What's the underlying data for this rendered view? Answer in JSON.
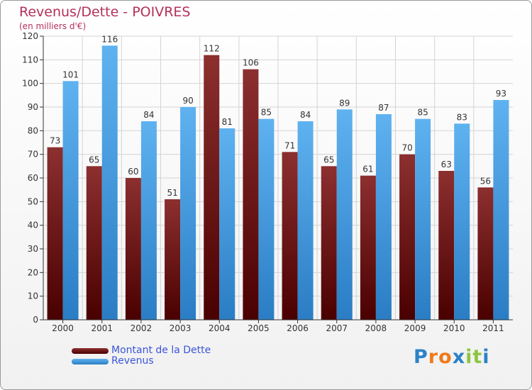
{
  "chart_data": {
    "type": "bar",
    "title": "Revenus/Dette - POIVRES",
    "subtitle": "(en milliers d'€)",
    "categories": [
      "2000",
      "2001",
      "2002",
      "2003",
      "2004",
      "2005",
      "2006",
      "2007",
      "2008",
      "2009",
      "2010",
      "2011"
    ],
    "series": [
      {
        "name": "Montant de la Dette",
        "values": [
          73,
          65,
          60,
          51,
          112,
          106,
          71,
          65,
          61,
          70,
          63,
          56
        ],
        "color": "#7a1e1e"
      },
      {
        "name": "Revenus",
        "values": [
          101,
          116,
          84,
          90,
          81,
          85,
          84,
          89,
          87,
          85,
          83,
          93
        ],
        "color": "#3d9ce6"
      }
    ],
    "ylim": [
      0,
      120
    ],
    "yticks": [
      0,
      10,
      20,
      30,
      40,
      50,
      60,
      70,
      80,
      90,
      100,
      110,
      120
    ],
    "grid": true,
    "legend_position": "bottom-left",
    "colors": {
      "title": "#b5305a",
      "debt_top": "#8c2f2f",
      "debt_bottom": "#4a0000",
      "revenue_top": "#5fb2f0",
      "revenue_bottom": "#2a7dc4",
      "legend_text": "#3b55d9"
    }
  },
  "logo": {
    "text": "Proxiti",
    "letters": [
      "P",
      "r",
      "o",
      "x",
      "i",
      "t",
      "i"
    ],
    "colors": [
      "#2b82c8",
      "#f07a1a",
      "#f07a1a",
      "#2b82c8",
      "#8dc63f",
      "#8dc63f",
      "#2b82c8"
    ]
  }
}
